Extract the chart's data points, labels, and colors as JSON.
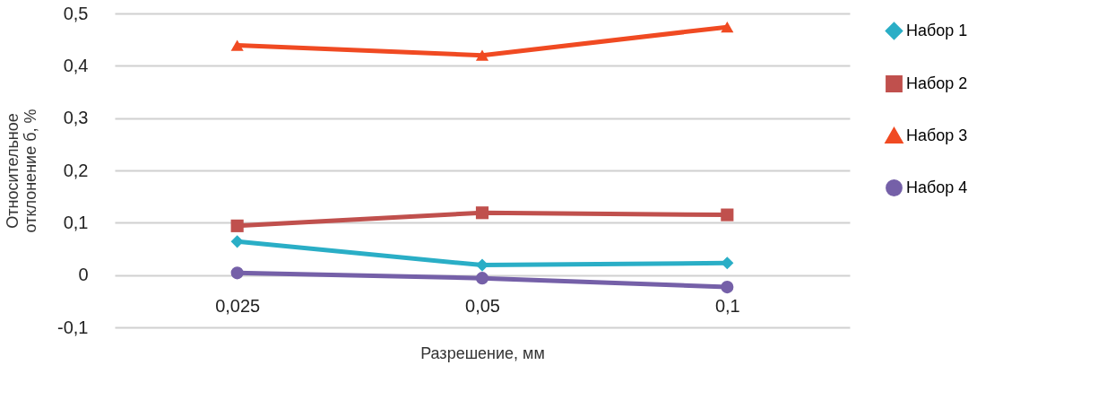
{
  "chart_data": {
    "type": "line",
    "xlabel": "Разрешение, мм",
    "ylabel": "Относительное отклонение б, %",
    "categories": [
      "0,025",
      "0,05",
      "0,1"
    ],
    "series": [
      {
        "name": "Набор 1",
        "color": "#2aaec6",
        "marker": "diamond",
        "values": [
          0.064,
          0.019,
          0.023
        ]
      },
      {
        "name": "Набор 2",
        "color": "#c0504d",
        "marker": "square",
        "values": [
          0.094,
          0.119,
          0.115
        ]
      },
      {
        "name": "Набор 3",
        "color": "#f04a22",
        "marker": "triangle",
        "values": [
          0.439,
          0.42,
          0.474
        ]
      },
      {
        "name": "Набор 4",
        "color": "#7560a8",
        "marker": "circle",
        "values": [
          0.004,
          -0.006,
          -0.023
        ]
      }
    ],
    "ylim": [
      -0.1,
      0.5
    ],
    "yticks": [
      {
        "value": -0.1,
        "label": "-0,1"
      },
      0,
      {
        "value": 0.1,
        "label": "0,1"
      },
      {
        "value": 0.2,
        "label": "0,2"
      },
      {
        "value": 0.3,
        "label": "0,3"
      },
      {
        "value": 0.4,
        "label": "0,4"
      },
      {
        "value": 0.5,
        "label": "0,5"
      }
    ],
    "grid": "y",
    "legend": "right",
    "line_style": "solid"
  }
}
